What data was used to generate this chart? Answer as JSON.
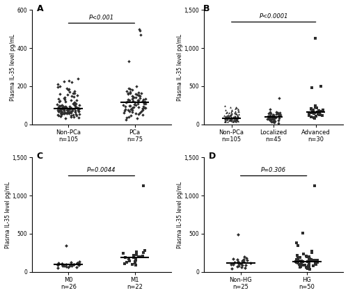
{
  "panel_A": {
    "title": "A",
    "pvalue": "P<0.001",
    "ylabel": "Plasma IL-35 level pg/mL",
    "groups": [
      "Non-PCa",
      "PCa"
    ],
    "ns": [
      105,
      75
    ],
    "ylim": [
      0,
      600
    ],
    "yticks": [
      0,
      200,
      400,
      600
    ],
    "data_NonPCa": [
      30,
      35,
      38,
      40,
      42,
      44,
      45,
      46,
      48,
      50,
      50,
      52,
      53,
      54,
      55,
      55,
      56,
      57,
      58,
      59,
      60,
      60,
      61,
      62,
      63,
      64,
      65,
      65,
      66,
      67,
      68,
      68,
      69,
      70,
      70,
      71,
      72,
      72,
      73,
      74,
      75,
      75,
      76,
      77,
      78,
      78,
      79,
      80,
      80,
      81,
      82,
      83,
      84,
      85,
      85,
      86,
      87,
      88,
      89,
      90,
      90,
      91,
      92,
      93,
      94,
      95,
      96,
      97,
      98,
      100,
      101,
      102,
      105,
      108,
      110,
      112,
      115,
      118,
      120,
      122,
      125,
      128,
      130,
      135,
      138,
      140,
      145,
      150,
      152,
      155,
      160,
      162,
      165,
      170,
      175,
      180,
      185,
      190,
      195,
      200,
      210,
      220,
      225,
      230,
      240
    ],
    "data_PCa": [
      25,
      30,
      35,
      40,
      45,
      50,
      55,
      58,
      60,
      62,
      65,
      68,
      70,
      72,
      74,
      75,
      77,
      78,
      80,
      82,
      84,
      85,
      87,
      88,
      90,
      92,
      94,
      95,
      97,
      98,
      100,
      102,
      105,
      107,
      108,
      110,
      112,
      114,
      115,
      118,
      120,
      122,
      124,
      125,
      127,
      128,
      130,
      132,
      134,
      135,
      138,
      140,
      142,
      145,
      148,
      150,
      152,
      154,
      155,
      158,
      160,
      162,
      164,
      165,
      168,
      170,
      175,
      180,
      185,
      190,
      200,
      330,
      470,
      490,
      500
    ]
  },
  "panel_B": {
    "title": "B",
    "pvalue": "P<0.0001",
    "ylabel": "Plasma IL-35 level pg/mL",
    "groups": [
      "Non-PCa",
      "Localized",
      "Advanced"
    ],
    "ns": [
      105,
      45,
      30
    ],
    "ylim": [
      0,
      1500
    ],
    "yticks": [
      0,
      500,
      1000,
      1500
    ],
    "markers": [
      "^",
      "D",
      "s"
    ],
    "data_NonPCa": [
      30,
      33,
      35,
      37,
      38,
      40,
      42,
      43,
      44,
      45,
      46,
      47,
      48,
      49,
      50,
      50,
      51,
      52,
      53,
      54,
      55,
      55,
      56,
      57,
      58,
      59,
      60,
      60,
      61,
      62,
      63,
      64,
      65,
      65,
      66,
      67,
      68,
      69,
      70,
      70,
      71,
      72,
      73,
      74,
      75,
      75,
      76,
      77,
      78,
      79,
      80,
      80,
      82,
      84,
      85,
      87,
      88,
      90,
      92,
      94,
      95,
      97,
      98,
      100,
      101,
      102,
      103,
      104,
      105,
      107,
      108,
      109,
      110,
      112,
      113,
      115,
      118,
      120,
      122,
      125,
      128,
      130,
      133,
      136,
      140,
      143,
      147,
      150,
      153,
      157,
      160,
      163,
      167,
      170,
      175,
      180,
      185,
      190,
      195,
      200,
      210,
      220,
      225,
      230,
      240
    ],
    "data_Localized": [
      20,
      25,
      30,
      35,
      40,
      45,
      50,
      55,
      60,
      65,
      68,
      70,
      72,
      75,
      78,
      80,
      83,
      85,
      88,
      90,
      93,
      95,
      98,
      100,
      105,
      108,
      110,
      113,
      115,
      118,
      120,
      123,
      125,
      128,
      130,
      135,
      140,
      145,
      150,
      155,
      160,
      165,
      200,
      340,
      100
    ],
    "data_Advanced": [
      80,
      90,
      100,
      108,
      112,
      118,
      122,
      128,
      132,
      138,
      142,
      148,
      152,
      158,
      162,
      168,
      172,
      178,
      182,
      188,
      192,
      198,
      202,
      208,
      215,
      225,
      240,
      480,
      500,
      1130
    ]
  },
  "panel_C": {
    "title": "C",
    "pvalue": "P=0.0044",
    "ylabel": "Plasma IL-35 level pg/mL",
    "groups": [
      "M0",
      "M1"
    ],
    "ns": [
      26,
      22
    ],
    "ylim": [
      0,
      1500
    ],
    "yticks": [
      0,
      500,
      1000,
      1500
    ],
    "markers": [
      "D",
      "s"
    ],
    "data_M0": [
      55,
      60,
      65,
      70,
      75,
      78,
      80,
      82,
      85,
      87,
      90,
      92,
      95,
      97,
      100,
      102,
      105,
      108,
      110,
      113,
      115,
      118,
      120,
      125,
      130,
      340
    ],
    "data_M1": [
      85,
      95,
      105,
      115,
      125,
      135,
      145,
      155,
      165,
      175,
      185,
      190,
      195,
      200,
      210,
      220,
      230,
      240,
      250,
      265,
      280,
      1130
    ]
  },
  "panel_D": {
    "title": "D",
    "pvalue": "P=0.306",
    "ylabel": "Plasma IL-35 level pg/mL",
    "groups": [
      "Non-HG",
      "HG"
    ],
    "ns": [
      25,
      50
    ],
    "ylim": [
      0,
      1500
    ],
    "yticks": [
      0,
      500,
      1000,
      1500
    ],
    "markers": [
      "D",
      "s"
    ],
    "data_NonHG": [
      40,
      50,
      60,
      70,
      80,
      88,
      92,
      95,
      100,
      105,
      110,
      115,
      120,
      125,
      130,
      135,
      140,
      148,
      155,
      160,
      165,
      170,
      180,
      490,
      200
    ],
    "data_HG": [
      35,
      42,
      50,
      55,
      60,
      65,
      70,
      75,
      80,
      85,
      88,
      92,
      95,
      98,
      102,
      105,
      108,
      112,
      115,
      118,
      122,
      125,
      128,
      132,
      135,
      138,
      142,
      145,
      148,
      152,
      155,
      158,
      162,
      165,
      170,
      175,
      180,
      188,
      195,
      205,
      218,
      235,
      252,
      270,
      340,
      380,
      510,
      1130,
      200,
      160
    ]
  },
  "bg_color": "#ffffff",
  "spine_color": "#000000",
  "jitter_seed": 42
}
